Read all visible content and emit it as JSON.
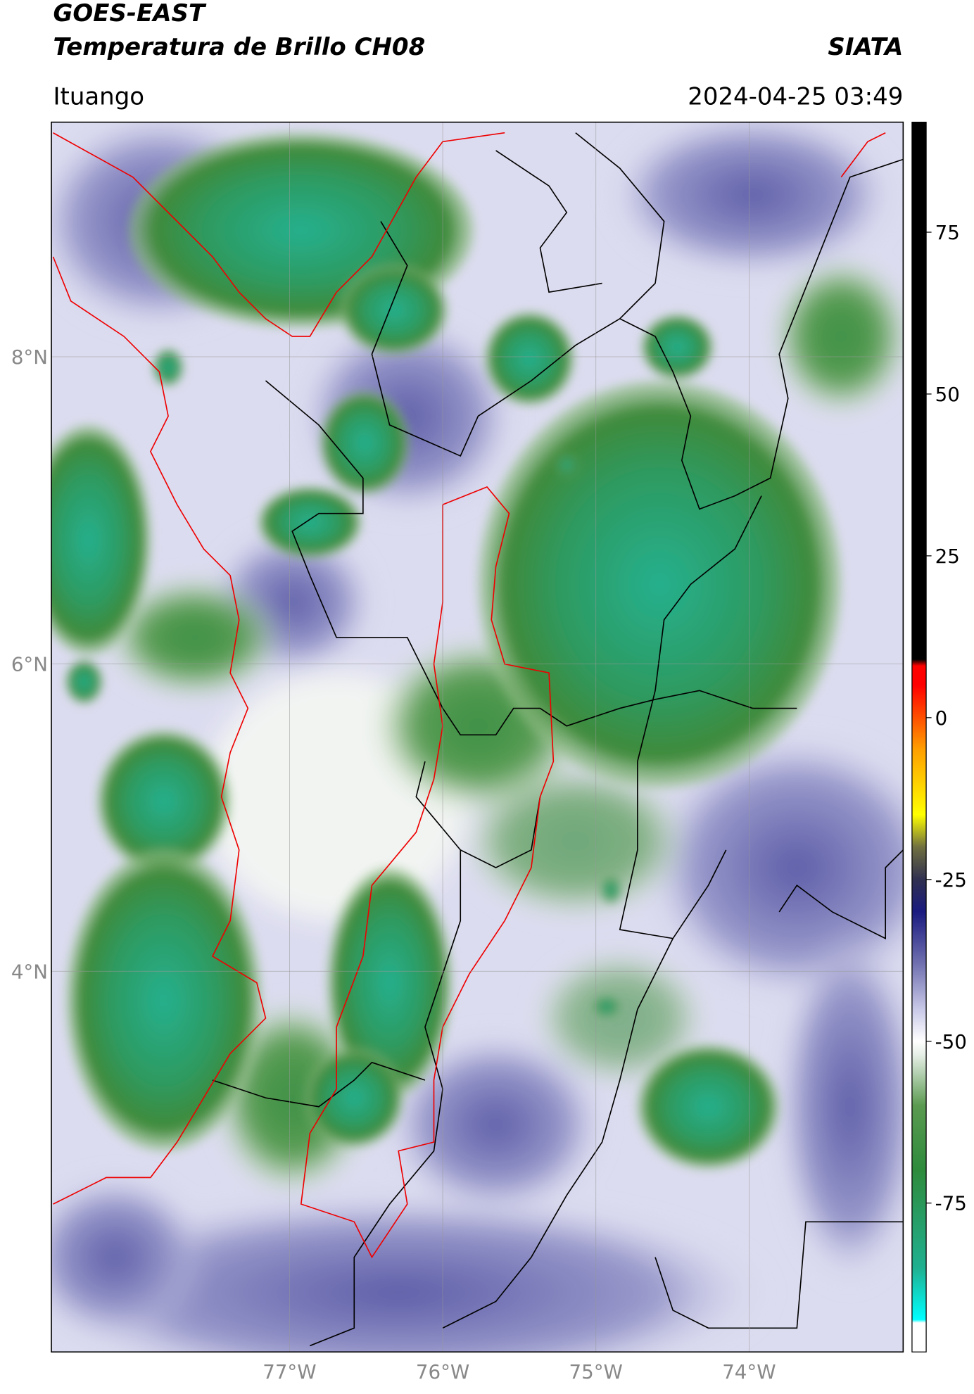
{
  "chart_data": {
    "type": "map",
    "title": "GOES-EAST",
    "subtitle": "Temperatura de Brillo CH08",
    "source": "SIATA",
    "location": "Ituango",
    "timestamp": "2024-04-25 03:49",
    "xlim": [
      -78.555,
      -72.994
    ],
    "ylim": [
      1.522,
      9.527
    ],
    "xticks": [
      {
        "value": -77,
        "label": "77°W"
      },
      {
        "value": -76,
        "label": "76°W"
      },
      {
        "value": -75,
        "label": "75°W"
      },
      {
        "value": -74,
        "label": "74°W"
      }
    ],
    "yticks": [
      {
        "value": 8,
        "label": "8°N"
      },
      {
        "value": 6,
        "label": "6°N"
      },
      {
        "value": 4,
        "label": "4°N"
      }
    ],
    "grid": true,
    "colorbar": {
      "clim": [
        -98,
        92
      ],
      "ticks": [
        75,
        50,
        25,
        0,
        -25,
        -50,
        -75
      ],
      "stops": [
        {
          "value": -98,
          "color": "#ffffff"
        },
        {
          "value": -93.5,
          "color": "#ffffff"
        },
        {
          "value": -93,
          "color": "#00ffff"
        },
        {
          "value": -85,
          "color": "#20b090"
        },
        {
          "value": -70,
          "color": "#2e8b3c"
        },
        {
          "value": -60,
          "color": "#5a9a50"
        },
        {
          "value": -52,
          "color": "#e8f0e8"
        },
        {
          "value": -50,
          "color": "#ffffff"
        },
        {
          "value": -45,
          "color": "#c8c8e8"
        },
        {
          "value": -38,
          "color": "#7070b0"
        },
        {
          "value": -30,
          "color": "#1a1a80"
        },
        {
          "value": -25,
          "color": "#303050"
        },
        {
          "value": -20,
          "color": "#707040"
        },
        {
          "value": -15,
          "color": "#ffff00"
        },
        {
          "value": -5,
          "color": "#ffa000"
        },
        {
          "value": 5,
          "color": "#ff0000"
        },
        {
          "value": 8,
          "color": "#ff0000"
        },
        {
          "value": 9,
          "color": "#000000"
        },
        {
          "value": 92,
          "color": "#000000"
        }
      ]
    }
  }
}
